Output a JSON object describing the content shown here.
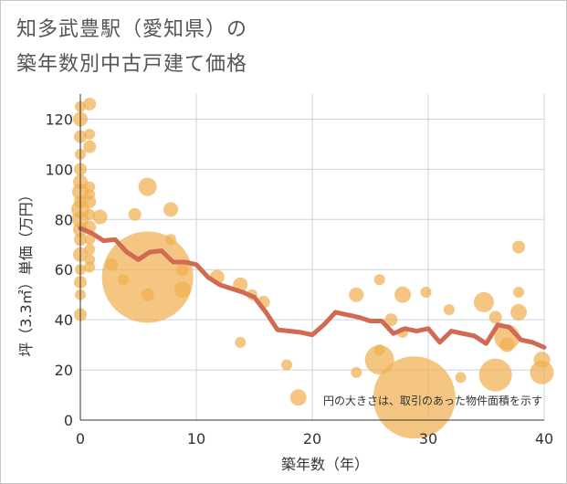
{
  "title_line1": "知多武豊駅（愛知県）の",
  "title_line2": "築年数別中古戸建て価格",
  "chart_data": {
    "type": "scatter",
    "title": "知多武豊駅（愛知県）の 築年数別中古戸建て価格",
    "xlabel": "築年数（年）",
    "ylabel": "坪（3.3㎡）単価（万円）",
    "xlim": [
      0,
      40
    ],
    "ylim": [
      0,
      130
    ],
    "xticks": [
      0,
      10,
      20,
      30,
      40
    ],
    "yticks": [
      0,
      20,
      40,
      60,
      80,
      100,
      120
    ],
    "grid": true,
    "note": "円の大きさは、取引のあった物件面積を示す",
    "colors": {
      "bubble": "#f0b050",
      "line": "#d06a52"
    },
    "bubbles": [
      {
        "x": 0,
        "y": 125,
        "r": 6
      },
      {
        "x": 0,
        "y": 120,
        "r": 8
      },
      {
        "x": 0,
        "y": 113,
        "r": 7
      },
      {
        "x": 0,
        "y": 106,
        "r": 6
      },
      {
        "x": 0,
        "y": 100,
        "r": 7
      },
      {
        "x": 0,
        "y": 95,
        "r": 8
      },
      {
        "x": 0,
        "y": 91,
        "r": 9
      },
      {
        "x": 0,
        "y": 87,
        "r": 7
      },
      {
        "x": 0,
        "y": 84,
        "r": 10
      },
      {
        "x": 0,
        "y": 80,
        "r": 9
      },
      {
        "x": 0,
        "y": 76,
        "r": 8
      },
      {
        "x": 0,
        "y": 72,
        "r": 7
      },
      {
        "x": 0,
        "y": 66,
        "r": 8
      },
      {
        "x": 0,
        "y": 60,
        "r": 6
      },
      {
        "x": 0,
        "y": 55,
        "r": 7
      },
      {
        "x": 0,
        "y": 50,
        "r": 6
      },
      {
        "x": 0,
        "y": 42,
        "r": 7
      },
      {
        "x": 0.8,
        "y": 126,
        "r": 7
      },
      {
        "x": 0.8,
        "y": 114,
        "r": 6
      },
      {
        "x": 0.8,
        "y": 109,
        "r": 7
      },
      {
        "x": 0.8,
        "y": 93,
        "r": 6
      },
      {
        "x": 0.8,
        "y": 90,
        "r": 6
      },
      {
        "x": 0.8,
        "y": 87,
        "r": 7
      },
      {
        "x": 0.8,
        "y": 82,
        "r": 6
      },
      {
        "x": 0.8,
        "y": 77,
        "r": 7
      },
      {
        "x": 0.8,
        "y": 72,
        "r": 6
      },
      {
        "x": 0.8,
        "y": 68,
        "r": 6
      },
      {
        "x": 0.8,
        "y": 64,
        "r": 6
      },
      {
        "x": 0.8,
        "y": 61,
        "r": 6
      },
      {
        "x": 1.7,
        "y": 81,
        "r": 8
      },
      {
        "x": 2.7,
        "y": 62,
        "r": 7
      },
      {
        "x": 3.7,
        "y": 56,
        "r": 6
      },
      {
        "x": 4.7,
        "y": 82,
        "r": 7
      },
      {
        "x": 5.8,
        "y": 93,
        "r": 10
      },
      {
        "x": 5.8,
        "y": 57,
        "r": 50
      },
      {
        "x": 5.8,
        "y": 50,
        "r": 7
      },
      {
        "x": 7.8,
        "y": 84,
        "r": 8
      },
      {
        "x": 7.8,
        "y": 72,
        "r": 6
      },
      {
        "x": 8.8,
        "y": 60,
        "r": 7
      },
      {
        "x": 8.8,
        "y": 52,
        "r": 9
      },
      {
        "x": 11.8,
        "y": 57,
        "r": 8
      },
      {
        "x": 13.8,
        "y": 54,
        "r": 8
      },
      {
        "x": 14.8,
        "y": 50,
        "r": 6
      },
      {
        "x": 15.8,
        "y": 47,
        "r": 7
      },
      {
        "x": 13.8,
        "y": 31,
        "r": 6
      },
      {
        "x": 17.8,
        "y": 22,
        "r": 6
      },
      {
        "x": 18.8,
        "y": 9,
        "r": 9
      },
      {
        "x": 23.8,
        "y": 50,
        "r": 8
      },
      {
        "x": 23.8,
        "y": 19,
        "r": 6
      },
      {
        "x": 25.8,
        "y": 56,
        "r": 6
      },
      {
        "x": 25.8,
        "y": 28,
        "r": 6
      },
      {
        "x": 25.8,
        "y": 24,
        "r": 16
      },
      {
        "x": 26.8,
        "y": 40,
        "r": 7
      },
      {
        "x": 27.8,
        "y": 50,
        "r": 9
      },
      {
        "x": 27.8,
        "y": 35,
        "r": 6
      },
      {
        "x": 28.8,
        "y": 9,
        "r": 45
      },
      {
        "x": 29.8,
        "y": 51,
        "r": 6
      },
      {
        "x": 31.8,
        "y": 44,
        "r": 6
      },
      {
        "x": 32.8,
        "y": 17,
        "r": 6
      },
      {
        "x": 34.8,
        "y": 47,
        "r": 11
      },
      {
        "x": 35.8,
        "y": 41,
        "r": 7
      },
      {
        "x": 35.8,
        "y": 18,
        "r": 18
      },
      {
        "x": 36.8,
        "y": 33,
        "r": 14
      },
      {
        "x": 36.8,
        "y": 30,
        "r": 8
      },
      {
        "x": 37.8,
        "y": 69,
        "r": 7
      },
      {
        "x": 37.8,
        "y": 51,
        "r": 6
      },
      {
        "x": 37.8,
        "y": 43,
        "r": 9
      },
      {
        "x": 39.8,
        "y": 24,
        "r": 9
      },
      {
        "x": 39.8,
        "y": 19,
        "r": 13
      }
    ],
    "trend": {
      "x": [
        0,
        1,
        2,
        3,
        4,
        5,
        6,
        7,
        8,
        9,
        10,
        11,
        12,
        13,
        14,
        15,
        16,
        17,
        18,
        19,
        20,
        21,
        22,
        23,
        24,
        25,
        26,
        27,
        28,
        29,
        30,
        31,
        32,
        33,
        34,
        35,
        36,
        37,
        38,
        39,
        40
      ],
      "y": [
        76.5,
        74.5,
        71.5,
        72,
        67,
        64,
        67,
        67.5,
        63,
        63,
        62,
        57,
        54,
        52.5,
        51,
        49,
        43,
        36,
        35.5,
        35,
        34,
        38,
        43,
        42,
        41,
        39.5,
        39.5,
        34.5,
        36.5,
        35.5,
        36.5,
        31,
        35.5,
        34.5,
        33.5,
        30.5,
        38,
        37,
        32,
        31,
        29
      ]
    }
  }
}
